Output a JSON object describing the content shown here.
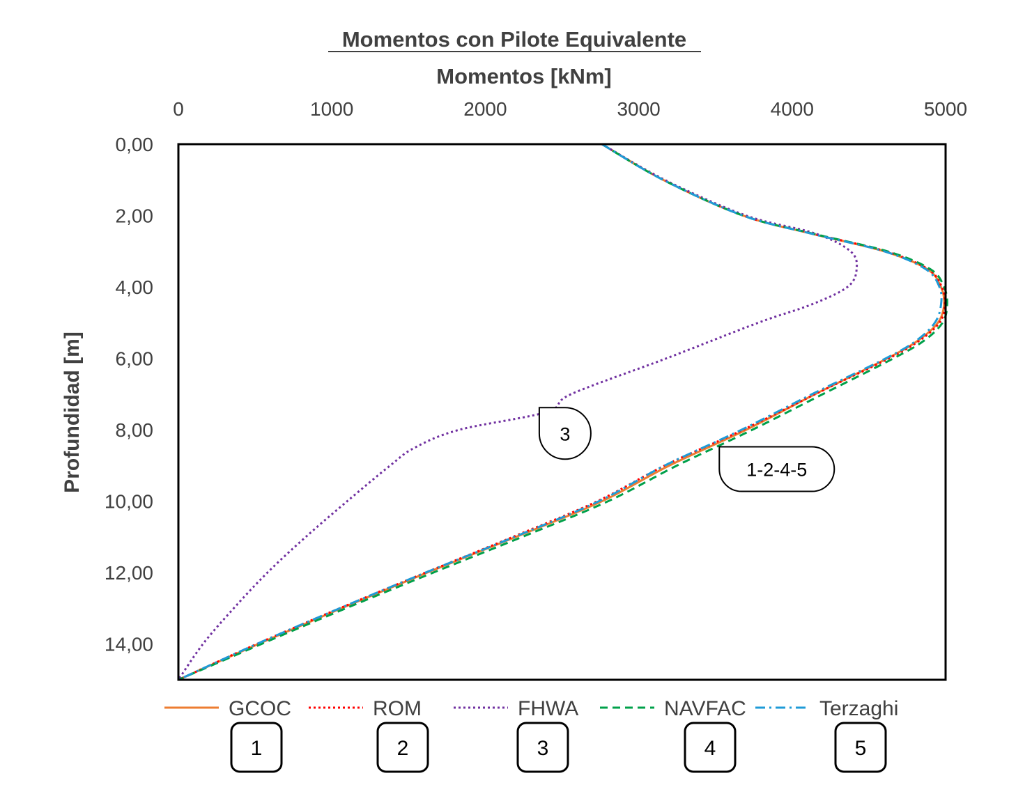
{
  "chart_data": {
    "type": "line",
    "title": "Momentos con Pilote Equivalente",
    "xlabel": "Momentos [kNm]",
    "ylabel": "Profundidad [m]",
    "xlim": [
      0,
      5000
    ],
    "ylim": [
      0,
      15
    ],
    "x_ticks": [
      "0",
      "1000",
      "2000",
      "3000",
      "4000",
      "5000"
    ],
    "y_ticks": [
      "0,00",
      "2,00",
      "4,00",
      "6,00",
      "8,00",
      "10,00",
      "12,00",
      "14,00"
    ],
    "x_axis_position": "top",
    "y_axis_inverted": true,
    "grid": false,
    "legend_position": "bottom",
    "series": [
      {
        "name": "GCOC",
        "marker": "1",
        "color": "#ED7D31",
        "dash": "solid",
        "depth": [
          0,
          1,
          2,
          2.5,
          3,
          3.5,
          4,
          4.5,
          5,
          5.5,
          6,
          7,
          8,
          9,
          10,
          11,
          12,
          13,
          14,
          15
        ],
        "values": [
          2760,
          3160,
          3680,
          4120,
          4600,
          4880,
          4970,
          4990,
          4950,
          4820,
          4620,
          4150,
          3700,
          3200,
          2760,
          2200,
          1620,
          1060,
          520,
          0
        ]
      },
      {
        "name": "ROM",
        "marker": "2",
        "color": "#FF0000",
        "dash": "dotted",
        "depth": [
          0,
          1,
          2,
          2.5,
          3,
          3.5,
          4,
          4.5,
          5,
          5.5,
          6,
          7,
          8,
          9,
          10,
          11,
          12,
          13,
          14,
          15
        ],
        "values": [
          2760,
          3170,
          3680,
          4130,
          4610,
          4885,
          4975,
          4995,
          4960,
          4830,
          4630,
          4150,
          3680,
          3170,
          2730,
          2180,
          1610,
          1050,
          510,
          0
        ]
      },
      {
        "name": "FHWA",
        "marker": "3",
        "color": "#7030A0",
        "dash": "dotted",
        "depth": [
          0,
          1,
          2,
          2.5,
          3,
          3.5,
          4,
          4.5,
          5,
          6,
          7,
          7.5,
          8,
          8.5,
          9,
          10,
          11,
          12,
          13,
          14,
          15
        ],
        "values": [
          2760,
          3170,
          3700,
          4150,
          4380,
          4420,
          4360,
          4120,
          3780,
          3180,
          2560,
          2400,
          1830,
          1540,
          1380,
          1100,
          830,
          580,
          360,
          160,
          0
        ]
      },
      {
        "name": "NAVFAC",
        "marker": "4",
        "color": "#00A04A",
        "dash": "dashed",
        "depth": [
          0,
          1,
          2,
          2.5,
          3,
          3.5,
          4,
          4.5,
          5,
          5.5,
          6,
          7,
          8,
          9,
          10,
          11,
          12,
          13,
          14,
          15
        ],
        "values": [
          2760,
          3160,
          3680,
          4130,
          4620,
          4900,
          4990,
          5010,
          4980,
          4860,
          4660,
          4200,
          3740,
          3250,
          2800,
          2240,
          1660,
          1090,
          540,
          0
        ]
      },
      {
        "name": "Terzaghi",
        "marker": "5",
        "color": "#1E9BD7",
        "dash": "dash-dot",
        "depth": [
          0,
          1,
          2,
          2.5,
          3,
          3.5,
          4,
          4.5,
          5,
          5.5,
          6,
          7,
          8,
          9,
          10,
          11,
          12,
          13,
          14,
          15
        ],
        "values": [
          2760,
          3160,
          3680,
          4120,
          4600,
          4870,
          4960,
          4970,
          4930,
          4810,
          4610,
          4130,
          3670,
          3170,
          2740,
          2190,
          1610,
          1050,
          510,
          0
        ]
      }
    ],
    "annotations": [
      {
        "text": "3",
        "x": 2520,
        "depth": 8.1
      },
      {
        "text": "1-2-4-5",
        "x": 3900,
        "depth": 9.1
      }
    ]
  }
}
